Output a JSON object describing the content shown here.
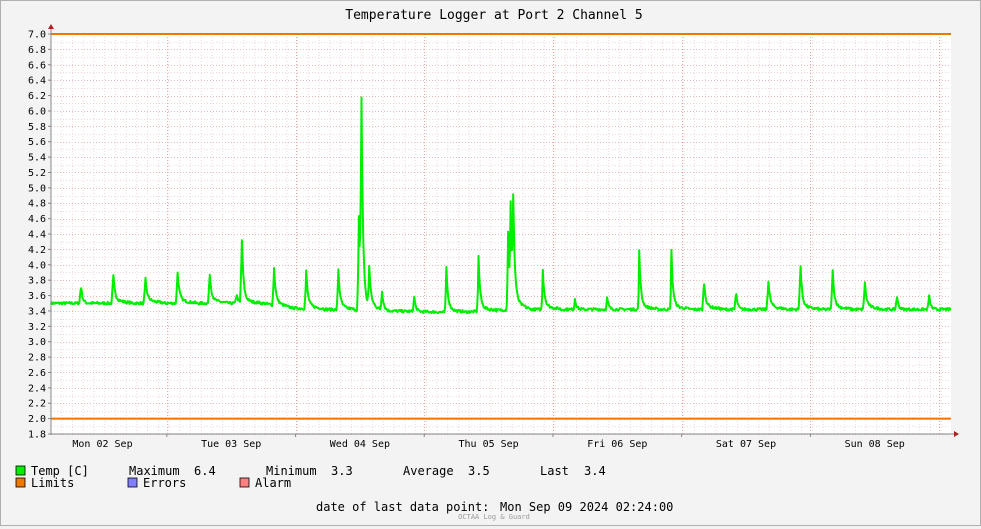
{
  "chart_data": {
    "type": "line",
    "title": "Temperature Logger at Port 2 Channel 5",
    "xlabel": "",
    "ylabel": "",
    "ylim": [
      1.8,
      7.0
    ],
    "y_ticks": [
      "7.0",
      "6.8",
      "6.6",
      "6.4",
      "6.2",
      "6.0",
      "5.8",
      "5.6",
      "5.4",
      "5.2",
      "5.0",
      "4.8",
      "4.6",
      "4.4",
      "4.2",
      "4.0",
      "3.8",
      "3.6",
      "3.4",
      "3.2",
      "3.0",
      "2.8",
      "2.6",
      "2.4",
      "2.2",
      "2.0",
      "1.8"
    ],
    "x_labels": [
      {
        "label": "Mon 02 Sep",
        "day": 0
      },
      {
        "label": "Tue 03 Sep",
        "day": 1
      },
      {
        "label": "Wed 04 Sep",
        "day": 2
      },
      {
        "label": "Thu 05 Sep",
        "day": 3
      },
      {
        "label": "Fri 06 Sep",
        "day": 4
      },
      {
        "label": "Sat 07 Sep",
        "day": 5
      },
      {
        "label": "Sun 08 Sep",
        "day": 6
      }
    ],
    "grid": true,
    "limits": {
      "upper": 7.0,
      "lower": 2.0
    },
    "series": [
      {
        "name": "Temp [C]",
        "color": "#00ee00",
        "baseline": [
          {
            "day": -0.2,
            "temp": 3.5
          },
          {
            "day": 1.25,
            "temp": 3.5
          },
          {
            "day": 1.45,
            "temp": 3.44
          },
          {
            "day": 1.75,
            "temp": 3.42
          },
          {
            "day": 2.25,
            "temp": 3.4
          },
          {
            "day": 2.75,
            "temp": 3.38
          },
          {
            "day": 3.2,
            "temp": 3.42
          },
          {
            "day": 6.2,
            "temp": 3.42
          },
          {
            "day": 6.8,
            "temp": 3.42
          }
        ],
        "spikes": [
          {
            "day": -0.17,
            "temp": 3.8
          },
          {
            "day": 0.08,
            "temp": 3.9
          },
          {
            "day": 0.33,
            "temp": 3.84
          },
          {
            "day": 0.58,
            "temp": 3.95
          },
          {
            "day": 0.83,
            "temp": 3.92
          },
          {
            "day": 1.04,
            "temp": 3.65
          },
          {
            "day": 1.08,
            "temp": 4.48
          },
          {
            "day": 1.33,
            "temp": 4.0
          },
          {
            "day": 1.58,
            "temp": 3.95
          },
          {
            "day": 1.83,
            "temp": 3.98
          },
          {
            "day": 1.99,
            "temp": 4.8
          },
          {
            "day": 2.01,
            "temp": 6.37
          },
          {
            "day": 2.07,
            "temp": 3.95
          },
          {
            "day": 2.17,
            "temp": 3.7
          },
          {
            "day": 2.42,
            "temp": 3.62
          },
          {
            "day": 2.67,
            "temp": 3.97
          },
          {
            "day": 2.92,
            "temp": 4.13
          },
          {
            "day": 3.15,
            "temp": 4.45
          },
          {
            "day": 3.17,
            "temp": 4.63
          },
          {
            "day": 3.19,
            "temp": 4.63
          },
          {
            "day": 3.42,
            "temp": 3.9
          },
          {
            "day": 3.67,
            "temp": 3.57
          },
          {
            "day": 3.92,
            "temp": 3.58
          },
          {
            "day": 4.17,
            "temp": 4.11
          },
          {
            "day": 4.42,
            "temp": 4.11
          },
          {
            "day": 4.67,
            "temp": 3.82
          },
          {
            "day": 4.92,
            "temp": 3.7
          },
          {
            "day": 5.17,
            "temp": 3.84
          },
          {
            "day": 5.42,
            "temp": 4.1
          },
          {
            "day": 5.67,
            "temp": 4.0
          },
          {
            "day": 5.92,
            "temp": 3.8
          },
          {
            "day": 6.17,
            "temp": 3.64
          },
          {
            "day": 6.42,
            "temp": 3.64
          },
          {
            "day": 6.67,
            "temp": 3.85
          }
        ]
      }
    ],
    "colors": {
      "temp": "#00ee00",
      "limits": "#ee7700",
      "errors": "#7f7fff",
      "alarm": "#ff7f7f"
    }
  },
  "legend": {
    "temp_label": "Temp [C]",
    "maximum_label": "Maximum",
    "maximum_value": "6.4",
    "minimum_label": "Minimum",
    "minimum_value": "3.3",
    "average_label": "Average",
    "average_value": "3.5",
    "last_label": "Last",
    "last_value": "3.4",
    "limits_label": "Limits",
    "errors_label": "Errors",
    "alarm_label": "Alarm"
  },
  "footer": {
    "last_point_label": "date of last data point:",
    "last_point_value": "Mon Sep 09 2024 02:24:00",
    "credit": "OCTAA Log & Guard"
  }
}
